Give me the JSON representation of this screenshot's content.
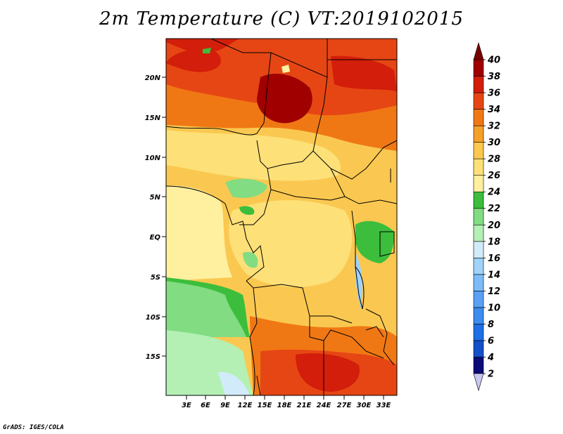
{
  "title": "2m Temperature (C) VT:2019102015",
  "credit": "GrADS: IGES/COLA",
  "lat_ticks": [
    "20N",
    "15N",
    "10N",
    "5N",
    "EQ",
    "5S",
    "10S",
    "15S"
  ],
  "lon_ticks": [
    "3E",
    "6E",
    "9E",
    "12E",
    "15E",
    "18E",
    "21E",
    "24E",
    "27E",
    "30E",
    "33E"
  ],
  "colorbar": {
    "levels": [
      "2",
      "4",
      "6",
      "8",
      "10",
      "12",
      "14",
      "16",
      "18",
      "20",
      "22",
      "24",
      "26",
      "28",
      "30",
      "32",
      "34",
      "36",
      "38",
      "40"
    ],
    "colors": [
      "#c8c8f0",
      "#0a0a78",
      "#1450c8",
      "#1e6ee6",
      "#3c8cf0",
      "#5aa0f5",
      "#7dbcf8",
      "#a0d2fa",
      "#d2ebfa",
      "#b4f0b4",
      "#82dc82",
      "#3cbe3c",
      "#fff0a0",
      "#fde078",
      "#fac850",
      "#f5a028",
      "#f07814",
      "#e64614",
      "#d21e0a",
      "#a00000",
      "#780000"
    ]
  }
}
